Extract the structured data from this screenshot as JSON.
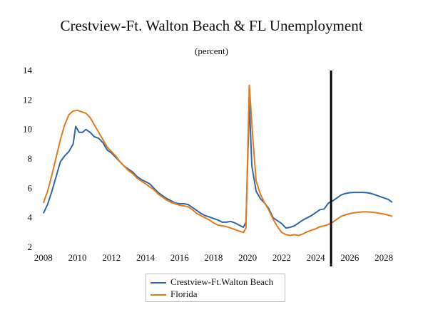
{
  "chart_data": {
    "type": "line",
    "title": "Crestview-Ft. Walton Beach & FL Unemployment",
    "subtitle": "(percent)",
    "xlabel": "",
    "ylabel": "",
    "xlim": [
      2007.8,
      2028.5
    ],
    "ylim": [
      2,
      14
    ],
    "x_ticks": [
      2008,
      2010,
      2012,
      2014,
      2016,
      2018,
      2020,
      2022,
      2024,
      2026,
      2028
    ],
    "y_ticks": [
      2,
      4,
      6,
      8,
      10,
      12,
      14
    ],
    "vertical_marker_x": 2024.9,
    "grid": false,
    "legend_position": "bottom",
    "series": [
      {
        "name": "Crestview-Ft.Walton Beach",
        "color": "#3465a4",
        "points": [
          [
            2008.0,
            4.3
          ],
          [
            2008.25,
            4.9
          ],
          [
            2008.5,
            5.8
          ],
          [
            2008.75,
            6.8
          ],
          [
            2009.0,
            7.8
          ],
          [
            2009.25,
            8.2
          ],
          [
            2009.5,
            8.5
          ],
          [
            2009.75,
            9.0
          ],
          [
            2009.9,
            10.2
          ],
          [
            2010.1,
            9.8
          ],
          [
            2010.3,
            9.8
          ],
          [
            2010.5,
            10.0
          ],
          [
            2010.75,
            9.8
          ],
          [
            2011.0,
            9.5
          ],
          [
            2011.25,
            9.4
          ],
          [
            2011.5,
            9.1
          ],
          [
            2011.75,
            8.6
          ],
          [
            2012.0,
            8.4
          ],
          [
            2012.25,
            8.1
          ],
          [
            2012.5,
            7.8
          ],
          [
            2012.75,
            7.5
          ],
          [
            2013.0,
            7.3
          ],
          [
            2013.25,
            7.1
          ],
          [
            2013.5,
            6.8
          ],
          [
            2013.75,
            6.6
          ],
          [
            2014.0,
            6.45
          ],
          [
            2014.25,
            6.3
          ],
          [
            2014.5,
            6.0
          ],
          [
            2014.75,
            5.7
          ],
          [
            2015.0,
            5.5
          ],
          [
            2015.25,
            5.3
          ],
          [
            2015.5,
            5.15
          ],
          [
            2015.75,
            5.0
          ],
          [
            2016.0,
            4.95
          ],
          [
            2016.25,
            4.95
          ],
          [
            2016.5,
            4.9
          ],
          [
            2016.75,
            4.7
          ],
          [
            2017.0,
            4.5
          ],
          [
            2017.25,
            4.3
          ],
          [
            2017.5,
            4.15
          ],
          [
            2017.75,
            4.05
          ],
          [
            2018.0,
            3.95
          ],
          [
            2018.25,
            3.85
          ],
          [
            2018.5,
            3.7
          ],
          [
            2018.75,
            3.7
          ],
          [
            2019.0,
            3.75
          ],
          [
            2019.25,
            3.65
          ],
          [
            2019.5,
            3.5
          ],
          [
            2019.75,
            3.35
          ],
          [
            2019.9,
            3.7
          ],
          [
            2020.1,
            11.8
          ],
          [
            2020.25,
            7.5
          ],
          [
            2020.5,
            5.8
          ],
          [
            2020.75,
            5.3
          ],
          [
            2021.0,
            5.0
          ],
          [
            2021.25,
            4.6
          ],
          [
            2021.5,
            4.0
          ],
          [
            2021.75,
            3.8
          ],
          [
            2022.0,
            3.6
          ],
          [
            2022.25,
            3.3
          ],
          [
            2022.5,
            3.35
          ],
          [
            2022.75,
            3.45
          ],
          [
            2023.0,
            3.65
          ],
          [
            2023.25,
            3.85
          ],
          [
            2023.5,
            4.0
          ],
          [
            2023.75,
            4.15
          ],
          [
            2024.0,
            4.35
          ],
          [
            2024.25,
            4.55
          ],
          [
            2024.5,
            4.6
          ],
          [
            2024.75,
            5.0
          ],
          [
            2025.0,
            5.15
          ],
          [
            2025.25,
            5.35
          ],
          [
            2025.5,
            5.55
          ],
          [
            2025.75,
            5.65
          ],
          [
            2026.0,
            5.7
          ],
          [
            2026.25,
            5.72
          ],
          [
            2026.5,
            5.72
          ],
          [
            2026.75,
            5.72
          ],
          [
            2027.0,
            5.7
          ],
          [
            2027.25,
            5.65
          ],
          [
            2027.5,
            5.55
          ],
          [
            2027.75,
            5.45
          ],
          [
            2028.0,
            5.35
          ],
          [
            2028.25,
            5.25
          ],
          [
            2028.5,
            5.05
          ]
        ]
      },
      {
        "name": "Florida",
        "color": "#e07b20",
        "points": [
          [
            2008.0,
            5.0
          ],
          [
            2008.25,
            5.8
          ],
          [
            2008.5,
            6.9
          ],
          [
            2008.75,
            8.1
          ],
          [
            2009.0,
            9.3
          ],
          [
            2009.25,
            10.3
          ],
          [
            2009.5,
            11.0
          ],
          [
            2009.75,
            11.25
          ],
          [
            2010.0,
            11.3
          ],
          [
            2010.25,
            11.2
          ],
          [
            2010.5,
            11.1
          ],
          [
            2010.75,
            10.8
          ],
          [
            2011.0,
            10.3
          ],
          [
            2011.25,
            9.8
          ],
          [
            2011.5,
            9.3
          ],
          [
            2011.75,
            8.8
          ],
          [
            2012.0,
            8.5
          ],
          [
            2012.25,
            8.2
          ],
          [
            2012.5,
            7.8
          ],
          [
            2012.75,
            7.5
          ],
          [
            2013.0,
            7.2
          ],
          [
            2013.25,
            7.0
          ],
          [
            2013.5,
            6.7
          ],
          [
            2013.75,
            6.5
          ],
          [
            2014.0,
            6.3
          ],
          [
            2014.25,
            6.1
          ],
          [
            2014.5,
            5.9
          ],
          [
            2014.75,
            5.6
          ],
          [
            2015.0,
            5.4
          ],
          [
            2015.25,
            5.2
          ],
          [
            2015.5,
            5.05
          ],
          [
            2015.75,
            4.95
          ],
          [
            2016.0,
            4.85
          ],
          [
            2016.25,
            4.8
          ],
          [
            2016.5,
            4.75
          ],
          [
            2016.75,
            4.55
          ],
          [
            2017.0,
            4.3
          ],
          [
            2017.25,
            4.15
          ],
          [
            2017.5,
            4.0
          ],
          [
            2017.75,
            3.85
          ],
          [
            2018.0,
            3.65
          ],
          [
            2018.25,
            3.5
          ],
          [
            2018.5,
            3.45
          ],
          [
            2018.75,
            3.4
          ],
          [
            2019.0,
            3.3
          ],
          [
            2019.25,
            3.2
          ],
          [
            2019.5,
            3.1
          ],
          [
            2019.75,
            3.0
          ],
          [
            2019.9,
            3.3
          ],
          [
            2020.1,
            13.0
          ],
          [
            2020.3,
            9.5
          ],
          [
            2020.5,
            6.5
          ],
          [
            2020.75,
            5.6
          ],
          [
            2021.0,
            5.0
          ],
          [
            2021.25,
            4.5
          ],
          [
            2021.5,
            3.9
          ],
          [
            2021.75,
            3.4
          ],
          [
            2022.0,
            3.0
          ],
          [
            2022.25,
            2.85
          ],
          [
            2022.5,
            2.8
          ],
          [
            2022.75,
            2.85
          ],
          [
            2023.0,
            2.8
          ],
          [
            2023.25,
            2.9
          ],
          [
            2023.5,
            3.05
          ],
          [
            2023.75,
            3.15
          ],
          [
            2024.0,
            3.25
          ],
          [
            2024.25,
            3.4
          ],
          [
            2024.5,
            3.45
          ],
          [
            2024.75,
            3.55
          ],
          [
            2025.0,
            3.7
          ],
          [
            2025.25,
            3.9
          ],
          [
            2025.5,
            4.1
          ],
          [
            2025.75,
            4.2
          ],
          [
            2026.0,
            4.28
          ],
          [
            2026.25,
            4.33
          ],
          [
            2026.5,
            4.37
          ],
          [
            2026.75,
            4.4
          ],
          [
            2027.0,
            4.4
          ],
          [
            2027.25,
            4.38
          ],
          [
            2027.5,
            4.35
          ],
          [
            2027.75,
            4.3
          ],
          [
            2028.0,
            4.25
          ],
          [
            2028.25,
            4.18
          ],
          [
            2028.5,
            4.1
          ]
        ]
      }
    ]
  }
}
